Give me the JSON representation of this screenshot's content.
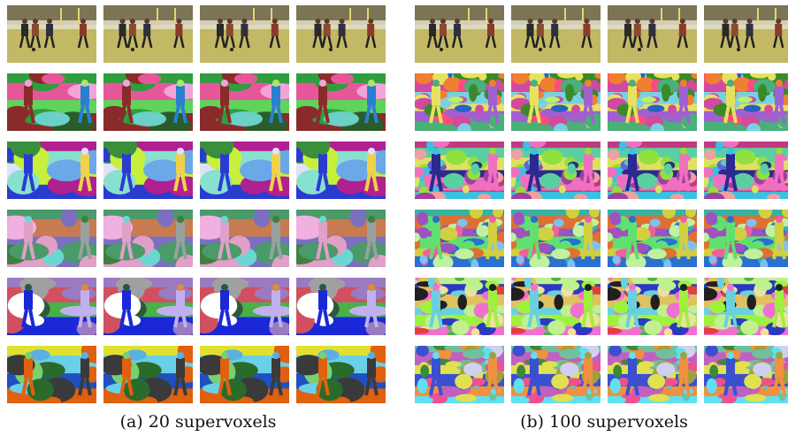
{
  "figure": {
    "caption_a": "(a) 20 supervoxels",
    "caption_b": "(b) 100 supervoxels"
  },
  "panels": [
    {
      "id": "a",
      "rows": [
        {
          "kind": "photo",
          "palette": [
            "#6f6a4a",
            "#b5a76a",
            "#c9c37a",
            "#8a5a3a",
            "#2a2a2a",
            "#dddcc8"
          ]
        },
        {
          "kind": "segmentation",
          "palette": [
            "#2e9e3e",
            "#e8569a",
            "#5fd35a",
            "#8a2b2b",
            "#2b7fd1",
            "#f2a3d8",
            "#b0e46a",
            "#2a5c2a",
            "#6ad0c8"
          ]
        },
        {
          "kind": "segmentation",
          "palette": [
            "#b02090",
            "#88e0d0",
            "#c8f03a",
            "#2a3cd0",
            "#f0d24a",
            "#3a8f3a",
            "#e0e0ff",
            "#6aa8e8",
            "#ff2a8a"
          ]
        },
        {
          "kind": "segmentation",
          "palette": [
            "#4a9a6a",
            "#c87a50",
            "#7a70c0",
            "#e0a0c8",
            "#9aa0a0",
            "#6ad8d0",
            "#3f7f3f",
            "#f0b0e0",
            "#d0d0d0"
          ]
        },
        {
          "kind": "segmentation",
          "palette": [
            "#9a7ac0",
            "#d05060",
            "#4ab04a",
            "#1a28d8",
            "#c0b0f0",
            "#2a5a3a",
            "#e08a3a",
            "#a0a0a0",
            "#ffffff"
          ]
        },
        {
          "kind": "segmentation",
          "palette": [
            "#e0e030",
            "#6ad0e8",
            "#2050c0",
            "#e06010",
            "#3a3a3a",
            "#7ad070",
            "#5ab0e0",
            "#2a6a2a",
            "#a0e8f0"
          ]
        }
      ]
    },
    {
      "id": "b",
      "rows": [
        {
          "kind": "photo",
          "palette": [
            "#6f6a4a",
            "#b5a76a",
            "#c9c37a",
            "#8a5a3a",
            "#2a2a2a",
            "#dddcc8"
          ]
        },
        {
          "kind": "segmentation",
          "palette": [
            "#3a8a2a",
            "#d04aa0",
            "#7ad0e0",
            "#e8e060",
            "#a060d0",
            "#4ab07a",
            "#f08030",
            "#2a60c0",
            "#c0f060",
            "#ff4a80"
          ]
        },
        {
          "kind": "segmentation",
          "palette": [
            "#c03a80",
            "#5ad0a0",
            "#e0e060",
            "#2a2a90",
            "#f070c0",
            "#3ac0e0",
            "#90e040",
            "#a040a0",
            "#f0a0a0",
            "#6060e0"
          ]
        },
        {
          "kind": "segmentation",
          "palette": [
            "#3ab0a0",
            "#e07030",
            "#a050c0",
            "#60e070",
            "#d0d040",
            "#2a70d0",
            "#f060a0",
            "#80c0f0",
            "#4a4aa0",
            "#c0f0a0"
          ]
        },
        {
          "kind": "segmentation",
          "palette": [
            "#c0f090",
            "#2a3ac0",
            "#e0c060",
            "#6ad0e0",
            "#a0f040",
            "#f070d0",
            "#202020",
            "#f0e0a0",
            "#50b050",
            "#e04040"
          ]
        },
        {
          "kind": "segmentation",
          "palette": [
            "#70c0a0",
            "#c060c0",
            "#e0e050",
            "#3a50d0",
            "#f09040",
            "#60e0f0",
            "#a0a040",
            "#f05090",
            "#3a8a3a",
            "#d0d0f0"
          ]
        }
      ]
    }
  ]
}
